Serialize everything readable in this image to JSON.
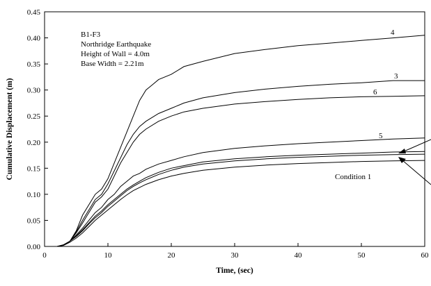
{
  "chart_data": {
    "type": "line",
    "xlabel": "Time, (sec)",
    "ylabel": "Cumulative Displacement (m)",
    "xlim": [
      0,
      60
    ],
    "ylim": [
      0,
      0.45
    ],
    "x_ticks": [
      "0",
      "10",
      "20",
      "30",
      "40",
      "50",
      "60"
    ],
    "y_ticks": [
      "0.00",
      "0.05",
      "0.10",
      "0.15",
      "0.20",
      "0.25",
      "0.30",
      "0.35",
      "0.40",
      "0.45"
    ],
    "annotation_lines": [
      "B1-F3",
      "Northridge Earthquake",
      "Height of Wall = 4.0m",
      "Base Width = 2.21m"
    ],
    "series": [
      {
        "label": "4",
        "points": [
          [
            0,
            0
          ],
          [
            2,
            0
          ],
          [
            3,
            0.003
          ],
          [
            4,
            0.01
          ],
          [
            5,
            0.03
          ],
          [
            6,
            0.06
          ],
          [
            7,
            0.08
          ],
          [
            8,
            0.1
          ],
          [
            9,
            0.11
          ],
          [
            10,
            0.13
          ],
          [
            11,
            0.16
          ],
          [
            12,
            0.19
          ],
          [
            13,
            0.22
          ],
          [
            14,
            0.25
          ],
          [
            15,
            0.28
          ],
          [
            16,
            0.3
          ],
          [
            17,
            0.31
          ],
          [
            18,
            0.32
          ],
          [
            20,
            0.33
          ],
          [
            22,
            0.345
          ],
          [
            25,
            0.355
          ],
          [
            30,
            0.37
          ],
          [
            35,
            0.378
          ],
          [
            40,
            0.385
          ],
          [
            45,
            0.39
          ],
          [
            50,
            0.395
          ],
          [
            55,
            0.4
          ],
          [
            60,
            0.405
          ]
        ]
      },
      {
        "label": "3",
        "points": [
          [
            0,
            0
          ],
          [
            2,
            0
          ],
          [
            3,
            0.003
          ],
          [
            4,
            0.01
          ],
          [
            5,
            0.028
          ],
          [
            6,
            0.05
          ],
          [
            7,
            0.07
          ],
          [
            8,
            0.09
          ],
          [
            9,
            0.1
          ],
          [
            10,
            0.12
          ],
          [
            11,
            0.145
          ],
          [
            12,
            0.17
          ],
          [
            13,
            0.195
          ],
          [
            14,
            0.215
          ],
          [
            15,
            0.23
          ],
          [
            16,
            0.24
          ],
          [
            18,
            0.255
          ],
          [
            20,
            0.265
          ],
          [
            22,
            0.275
          ],
          [
            25,
            0.285
          ],
          [
            30,
            0.295
          ],
          [
            35,
            0.302
          ],
          [
            40,
            0.307
          ],
          [
            45,
            0.311
          ],
          [
            50,
            0.314
          ],
          [
            55,
            0.318
          ],
          [
            60,
            0.318
          ]
        ]
      },
      {
        "label": "6",
        "points": [
          [
            0,
            0
          ],
          [
            2,
            0
          ],
          [
            3,
            0.003
          ],
          [
            4,
            0.01
          ],
          [
            5,
            0.026
          ],
          [
            6,
            0.045
          ],
          [
            7,
            0.065
          ],
          [
            8,
            0.085
          ],
          [
            9,
            0.095
          ],
          [
            10,
            0.11
          ],
          [
            11,
            0.135
          ],
          [
            12,
            0.16
          ],
          [
            13,
            0.18
          ],
          [
            14,
            0.2
          ],
          [
            15,
            0.215
          ],
          [
            16,
            0.225
          ],
          [
            18,
            0.24
          ],
          [
            20,
            0.25
          ],
          [
            22,
            0.258
          ],
          [
            25,
            0.265
          ],
          [
            30,
            0.273
          ],
          [
            35,
            0.278
          ],
          [
            40,
            0.282
          ],
          [
            45,
            0.285
          ],
          [
            50,
            0.287
          ],
          [
            55,
            0.288
          ],
          [
            60,
            0.289
          ]
        ]
      },
      {
        "label": "5",
        "points": [
          [
            0,
            0
          ],
          [
            2,
            0
          ],
          [
            3,
            0.003
          ],
          [
            4,
            0.01
          ],
          [
            5,
            0.022
          ],
          [
            6,
            0.035
          ],
          [
            7,
            0.05
          ],
          [
            8,
            0.065
          ],
          [
            9,
            0.075
          ],
          [
            10,
            0.09
          ],
          [
            11,
            0.1
          ],
          [
            12,
            0.115
          ],
          [
            13,
            0.125
          ],
          [
            14,
            0.135
          ],
          [
            15,
            0.14
          ],
          [
            16,
            0.148
          ],
          [
            18,
            0.158
          ],
          [
            20,
            0.165
          ],
          [
            22,
            0.172
          ],
          [
            25,
            0.18
          ],
          [
            30,
            0.188
          ],
          [
            35,
            0.193
          ],
          [
            40,
            0.197
          ],
          [
            45,
            0.2
          ],
          [
            50,
            0.203
          ],
          [
            55,
            0.206
          ],
          [
            60,
            0.208
          ]
        ]
      },
      {
        "label": "",
        "points": [
          [
            0,
            0
          ],
          [
            2,
            0
          ],
          [
            3,
            0.003
          ],
          [
            4,
            0.01
          ],
          [
            5,
            0.02
          ],
          [
            6,
            0.032
          ],
          [
            7,
            0.045
          ],
          [
            8,
            0.058
          ],
          [
            9,
            0.068
          ],
          [
            10,
            0.08
          ],
          [
            11,
            0.09
          ],
          [
            12,
            0.1
          ],
          [
            13,
            0.11
          ],
          [
            14,
            0.118
          ],
          [
            15,
            0.125
          ],
          [
            16,
            0.132
          ],
          [
            18,
            0.142
          ],
          [
            20,
            0.15
          ],
          [
            22,
            0.155
          ],
          [
            25,
            0.162
          ],
          [
            30,
            0.168
          ],
          [
            35,
            0.172
          ],
          [
            40,
            0.175
          ],
          [
            45,
            0.177
          ],
          [
            50,
            0.179
          ],
          [
            55,
            0.181
          ],
          [
            60,
            0.182
          ]
        ]
      },
      {
        "label": "",
        "points": [
          [
            0,
            0
          ],
          [
            2,
            0
          ],
          [
            3,
            0.003
          ],
          [
            4,
            0.01
          ],
          [
            5,
            0.019
          ],
          [
            6,
            0.03
          ],
          [
            7,
            0.043
          ],
          [
            8,
            0.055
          ],
          [
            9,
            0.065
          ],
          [
            10,
            0.077
          ],
          [
            11,
            0.087
          ],
          [
            12,
            0.097
          ],
          [
            13,
            0.107
          ],
          [
            14,
            0.115
          ],
          [
            15,
            0.122
          ],
          [
            16,
            0.128
          ],
          [
            18,
            0.138
          ],
          [
            20,
            0.146
          ],
          [
            22,
            0.152
          ],
          [
            25,
            0.158
          ],
          [
            30,
            0.164
          ],
          [
            35,
            0.168
          ],
          [
            40,
            0.171
          ],
          [
            45,
            0.173
          ],
          [
            50,
            0.175
          ],
          [
            55,
            0.176
          ],
          [
            60,
            0.177
          ]
        ]
      },
      {
        "label": "Condition 1",
        "points": [
          [
            0,
            0
          ],
          [
            2,
            0
          ],
          [
            3,
            0.002
          ],
          [
            4,
            0.008
          ],
          [
            5,
            0.016
          ],
          [
            6,
            0.026
          ],
          [
            7,
            0.038
          ],
          [
            8,
            0.05
          ],
          [
            9,
            0.06
          ],
          [
            10,
            0.07
          ],
          [
            11,
            0.08
          ],
          [
            12,
            0.09
          ],
          [
            13,
            0.099
          ],
          [
            14,
            0.107
          ],
          [
            15,
            0.113
          ],
          [
            16,
            0.119
          ],
          [
            18,
            0.128
          ],
          [
            20,
            0.135
          ],
          [
            22,
            0.14
          ],
          [
            25,
            0.146
          ],
          [
            30,
            0.152
          ],
          [
            35,
            0.156
          ],
          [
            40,
            0.159
          ],
          [
            45,
            0.161
          ],
          [
            50,
            0.163
          ],
          [
            55,
            0.164
          ],
          [
            60,
            0.165
          ]
        ]
      }
    ]
  }
}
